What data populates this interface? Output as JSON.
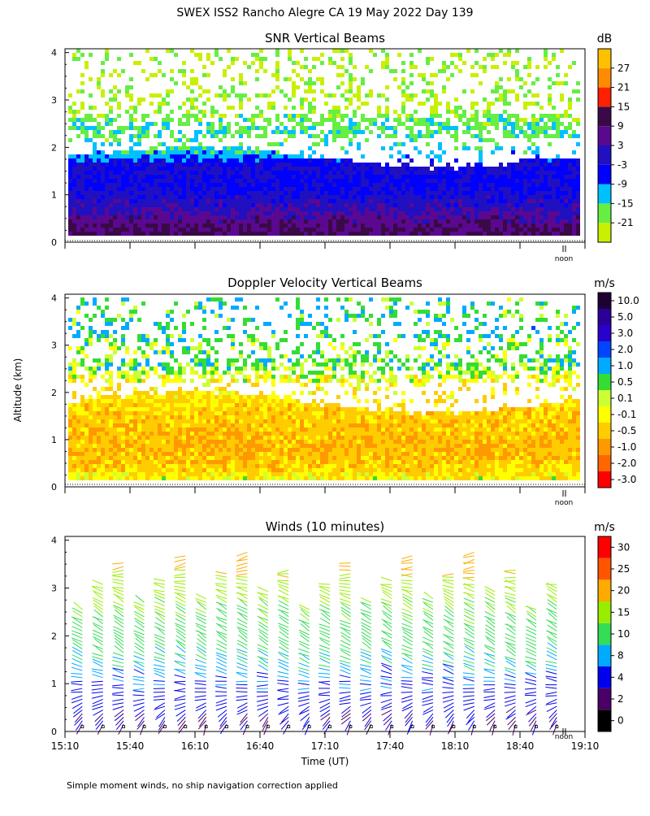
{
  "page": {
    "title": "SWEX ISS2 Rancho Alegre CA  19 May 2022 Day 139",
    "ylabel": "Altitude (km)",
    "xlabel": "Time (UT)",
    "footnote": "Simple moment winds, no ship navigation correction applied",
    "noon_label": "noon"
  },
  "colors": {
    "snr_scale": [
      "#c8f000",
      "#66ee44",
      "#00c0ff",
      "#0000ff",
      "#2010c0",
      "#5a0890",
      "#3a0a46",
      "#ff2000",
      "#ff8c00",
      "#ffc000"
    ],
    "vel_scale": [
      "#ff0000",
      "#ff6600",
      "#ff9900",
      "#ffcc00",
      "#ffff00",
      "#ccff33",
      "#33dd33",
      "#00aaff",
      "#0044ff",
      "#2a00cc",
      "#2b0099",
      "#1f0033"
    ],
    "wind_scale": [
      "#000000",
      "#4a0066",
      "#0000ee",
      "#00aaff",
      "#33dd55",
      "#99ee00",
      "#ffaa00",
      "#ff5500",
      "#ff0000"
    ]
  },
  "chart_data": [
    {
      "type": "heatmap",
      "title": "SNR Vertical Beams",
      "units": "dB",
      "xlim_hours": [
        15.1667,
        19.1667
      ],
      "ylim": [
        0,
        4
      ],
      "yticks": [
        "0",
        "1",
        "2",
        "3",
        "4"
      ],
      "colorbar_labels": [
        "-21",
        "-15",
        "-9",
        "-3",
        "3",
        "9",
        "15",
        "21",
        "27"
      ],
      "profile_altitude_km": [
        0.15,
        0.3,
        0.5,
        0.7,
        0.9,
        1.1,
        1.3,
        1.5,
        1.7,
        1.9,
        2.1,
        2.3,
        2.5,
        2.7,
        2.9,
        3.1,
        3.3,
        3.5,
        3.7,
        3.9
      ],
      "profile_snr_db": [
        10,
        8,
        5,
        1,
        -1,
        -4,
        -4,
        -2,
        -6,
        -14,
        -17,
        -16,
        -17,
        -20,
        -22,
        -22,
        -22,
        -22,
        -22,
        -22
      ]
    },
    {
      "type": "heatmap",
      "title": "Doppler Velocity Vertical Beams",
      "units": "m/s",
      "xlim_hours": [
        15.1667,
        19.1667
      ],
      "ylim": [
        0,
        4
      ],
      "yticks": [
        "0",
        "1",
        "2",
        "3",
        "4"
      ],
      "colorbar_labels": [
        "-3.0",
        "-2.0",
        "-1.0",
        "-0.5",
        "-0.1",
        "0.1",
        "0.5",
        "1.0",
        "2.0",
        "3.0",
        "5.0",
        "10.0"
      ],
      "profile_altitude_km": [
        0.15,
        0.3,
        0.5,
        0.7,
        0.9,
        1.1,
        1.3,
        1.5,
        1.7,
        1.9,
        2.1,
        2.3,
        2.5,
        2.7,
        2.9,
        3.1,
        3.3,
        3.5,
        3.7,
        3.9
      ],
      "profile_velocity_ms": [
        -0.3,
        -0.6,
        -0.8,
        -0.9,
        -0.9,
        -0.8,
        -0.8,
        -0.7,
        -0.6,
        -0.5,
        -0.4,
        -0.2,
        0.3,
        0.3,
        0.1,
        0.3,
        0.6,
        0.4,
        0.3,
        0.3
      ]
    },
    {
      "type": "scatter",
      "title": "Winds (10 minutes)",
      "units": "m/s",
      "xlim_hours": [
        15.1667,
        19.1667
      ],
      "ylim": [
        0,
        4
      ],
      "yticks": [
        "0",
        "1",
        "2",
        "3",
        "4"
      ],
      "xticks": [
        "15:10",
        "15:40",
        "16:10",
        "16:40",
        "17:10",
        "17:40",
        "18:10",
        "18:40",
        "19:10"
      ],
      "colorbar_labels": [
        "0",
        "2",
        "4",
        "8",
        "10",
        "15",
        "20",
        "25",
        "30"
      ],
      "profile_count": 24,
      "profile_altitude_km": [
        0.1,
        0.3,
        0.5,
        0.7,
        0.9,
        1.1,
        1.3,
        1.5,
        1.7,
        1.9,
        2.1,
        2.3,
        2.5,
        2.7,
        2.9,
        3.1,
        3.3,
        3.5,
        3.7,
        3.9
      ],
      "profile_speed_ms": [
        3,
        4,
        5,
        6,
        7,
        8,
        9,
        10,
        11,
        12,
        13,
        14,
        15,
        16,
        17,
        18,
        20,
        22,
        24,
        26
      ],
      "profile_direction_deg": [
        200,
        220,
        240,
        260,
        270,
        280,
        290,
        295,
        300,
        300,
        300,
        300,
        300,
        300,
        290,
        280,
        270,
        260,
        250,
        240
      ]
    }
  ]
}
